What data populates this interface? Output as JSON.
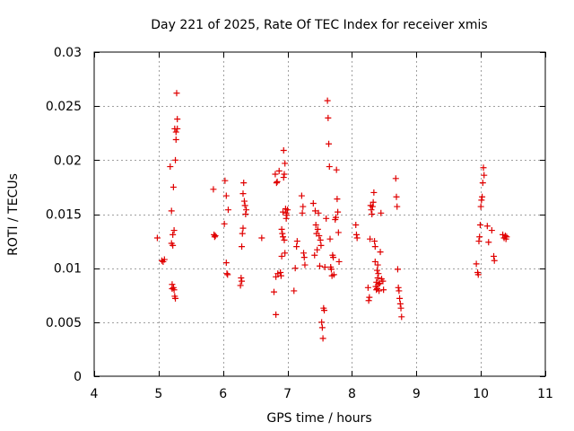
{
  "chart_data": {
    "type": "scatter",
    "title": "Day 221 of 2025, Rate Of TEC Index for receiver xmis",
    "xlabel": "GPS time / hours",
    "ylabel": "ROTI / TECUs",
    "xlim": [
      4,
      11
    ],
    "ylim": [
      0,
      0.03
    ],
    "xticks": [
      "4",
      "5",
      "6",
      "7",
      "8",
      "9",
      "10",
      "11"
    ],
    "yticks": [
      "0",
      "0.005",
      "0.01",
      "0.015",
      "0.02",
      "0.025",
      "0.03"
    ],
    "grid": true,
    "marker": "+",
    "color": "#e00000",
    "series": [
      {
        "name": "ROTI",
        "points": [
          [
            4.98,
            0.0128
          ],
          [
            5.05,
            0.0107
          ],
          [
            5.07,
            0.0106
          ],
          [
            5.09,
            0.0108
          ],
          [
            5.18,
            0.0194
          ],
          [
            5.2,
            0.0153
          ],
          [
            5.2,
            0.0123
          ],
          [
            5.21,
            0.0085
          ],
          [
            5.21,
            0.0081
          ],
          [
            5.22,
            0.0121
          ],
          [
            5.22,
            0.0131
          ],
          [
            5.23,
            0.0082
          ],
          [
            5.23,
            0.0175
          ],
          [
            5.24,
            0.008
          ],
          [
            5.24,
            0.0135
          ],
          [
            5.25,
            0.0229
          ],
          [
            5.25,
            0.0074
          ],
          [
            5.26,
            0.0072
          ],
          [
            5.26,
            0.02
          ],
          [
            5.27,
            0.0219
          ],
          [
            5.27,
            0.0226
          ],
          [
            5.28,
            0.0262
          ],
          [
            5.29,
            0.0229
          ],
          [
            5.29,
            0.0238
          ],
          [
            5.85,
            0.0173
          ],
          [
            5.86,
            0.0131
          ],
          [
            5.87,
            0.0129
          ],
          [
            5.88,
            0.013
          ],
          [
            6.02,
            0.0141
          ],
          [
            6.03,
            0.0181
          ],
          [
            6.05,
            0.0167
          ],
          [
            6.05,
            0.0105
          ],
          [
            6.06,
            0.0095
          ],
          [
            6.07,
            0.0094
          ],
          [
            6.08,
            0.0154
          ],
          [
            6.27,
            0.0084
          ],
          [
            6.28,
            0.0091
          ],
          [
            6.29,
            0.0088
          ],
          [
            6.29,
            0.012
          ],
          [
            6.3,
            0.0132
          ],
          [
            6.31,
            0.0137
          ],
          [
            6.31,
            0.0169
          ],
          [
            6.32,
            0.0179
          ],
          [
            6.33,
            0.0162
          ],
          [
            6.34,
            0.0158
          ],
          [
            6.35,
            0.015
          ],
          [
            6.36,
            0.0154
          ],
          [
            6.6,
            0.0128
          ],
          [
            6.79,
            0.0078
          ],
          [
            6.81,
            0.0187
          ],
          [
            6.82,
            0.0092
          ],
          [
            6.82,
            0.0057
          ],
          [
            6.83,
            0.0179
          ],
          [
            6.84,
            0.018
          ],
          [
            6.85,
            0.0095
          ],
          [
            6.87,
            0.019
          ],
          [
            6.89,
            0.0096
          ],
          [
            6.9,
            0.0093
          ],
          [
            6.91,
            0.0111
          ],
          [
            6.91,
            0.0136
          ],
          [
            6.92,
            0.0132
          ],
          [
            6.93,
            0.0129
          ],
          [
            6.93,
            0.0152
          ],
          [
            6.94,
            0.0209
          ],
          [
            6.94,
            0.0184
          ],
          [
            6.95,
            0.0187
          ],
          [
            6.95,
            0.0126
          ],
          [
            6.96,
            0.0197
          ],
          [
            6.96,
            0.0114
          ],
          [
            6.97,
            0.0155
          ],
          [
            6.98,
            0.0146
          ],
          [
            6.98,
            0.0151
          ],
          [
            6.99,
            0.0149
          ],
          [
            7.0,
            0.0154
          ],
          [
            7.1,
            0.0079
          ],
          [
            7.12,
            0.01
          ],
          [
            7.14,
            0.012
          ],
          [
            7.15,
            0.0125
          ],
          [
            7.22,
            0.0167
          ],
          [
            7.23,
            0.0151
          ],
          [
            7.24,
            0.0157
          ],
          [
            7.25,
            0.0114
          ],
          [
            7.26,
            0.011
          ],
          [
            7.27,
            0.0103
          ],
          [
            7.4,
            0.016
          ],
          [
            7.42,
            0.0112
          ],
          [
            7.43,
            0.0153
          ],
          [
            7.44,
            0.014
          ],
          [
            7.45,
            0.0132
          ],
          [
            7.46,
            0.0117
          ],
          [
            7.47,
            0.0136
          ],
          [
            7.48,
            0.0151
          ],
          [
            7.49,
            0.013
          ],
          [
            7.5,
            0.0102
          ],
          [
            7.51,
            0.0126
          ],
          [
            7.52,
            0.0121
          ],
          [
            7.53,
            0.005
          ],
          [
            7.54,
            0.0045
          ],
          [
            7.55,
            0.0035
          ],
          [
            7.56,
            0.0063
          ],
          [
            7.57,
            0.0061
          ],
          [
            7.58,
            0.0101
          ],
          [
            7.6,
            0.0146
          ],
          [
            7.62,
            0.0255
          ],
          [
            7.63,
            0.0239
          ],
          [
            7.64,
            0.0215
          ],
          [
            7.65,
            0.0194
          ],
          [
            7.66,
            0.0127
          ],
          [
            7.67,
            0.0101
          ],
          [
            7.68,
            0.0099
          ],
          [
            7.69,
            0.0093
          ],
          [
            7.7,
            0.0112
          ],
          [
            7.71,
            0.011
          ],
          [
            7.72,
            0.0094
          ],
          [
            7.74,
            0.0145
          ],
          [
            7.75,
            0.0147
          ],
          [
            7.76,
            0.0191
          ],
          [
            7.77,
            0.0164
          ],
          [
            7.78,
            0.0152
          ],
          [
            7.79,
            0.0133
          ],
          [
            7.8,
            0.0106
          ],
          [
            8.06,
            0.014
          ],
          [
            8.07,
            0.0131
          ],
          [
            8.08,
            0.0128
          ],
          [
            8.25,
            0.0082
          ],
          [
            8.26,
            0.007
          ],
          [
            8.27,
            0.0073
          ],
          [
            8.28,
            0.0127
          ],
          [
            8.29,
            0.0158
          ],
          [
            8.3,
            0.0154
          ],
          [
            8.31,
            0.015
          ],
          [
            8.32,
            0.0157
          ],
          [
            8.33,
            0.0161
          ],
          [
            8.34,
            0.017
          ],
          [
            8.35,
            0.0125
          ],
          [
            8.36,
            0.012
          ],
          [
            8.36,
            0.0106
          ],
          [
            8.37,
            0.0083
          ],
          [
            8.38,
            0.008
          ],
          [
            8.38,
            0.0087
          ],
          [
            8.39,
            0.0081
          ],
          [
            8.39,
            0.0098
          ],
          [
            8.4,
            0.0091
          ],
          [
            8.4,
            0.0103
          ],
          [
            8.41,
            0.0085
          ],
          [
            8.41,
            0.0095
          ],
          [
            8.42,
            0.0079
          ],
          [
            8.43,
            0.0086
          ],
          [
            8.44,
            0.0115
          ],
          [
            8.45,
            0.0151
          ],
          [
            8.46,
            0.009
          ],
          [
            8.48,
            0.0088
          ],
          [
            8.49,
            0.008
          ],
          [
            8.68,
            0.0183
          ],
          [
            8.69,
            0.0166
          ],
          [
            8.7,
            0.0157
          ],
          [
            8.71,
            0.0099
          ],
          [
            8.72,
            0.0082
          ],
          [
            8.73,
            0.0079
          ],
          [
            8.74,
            0.0072
          ],
          [
            8.75,
            0.0067
          ],
          [
            8.76,
            0.0063
          ],
          [
            8.77,
            0.0055
          ],
          [
            9.93,
            0.0104
          ],
          [
            9.95,
            0.0096
          ],
          [
            9.96,
            0.0094
          ],
          [
            9.97,
            0.0125
          ],
          [
            9.98,
            0.0129
          ],
          [
            9.99,
            0.014
          ],
          [
            10.0,
            0.0157
          ],
          [
            10.01,
            0.0163
          ],
          [
            10.02,
            0.0166
          ],
          [
            10.03,
            0.0179
          ],
          [
            10.04,
            0.0193
          ],
          [
            10.05,
            0.0186
          ],
          [
            10.1,
            0.0139
          ],
          [
            10.12,
            0.0124
          ],
          [
            10.17,
            0.0135
          ],
          [
            10.2,
            0.0111
          ],
          [
            10.21,
            0.0107
          ],
          [
            10.34,
            0.0131
          ],
          [
            10.36,
            0.0128
          ],
          [
            10.38,
            0.013
          ],
          [
            10.39,
            0.0127
          ],
          [
            10.4,
            0.0129
          ]
        ]
      }
    ]
  }
}
